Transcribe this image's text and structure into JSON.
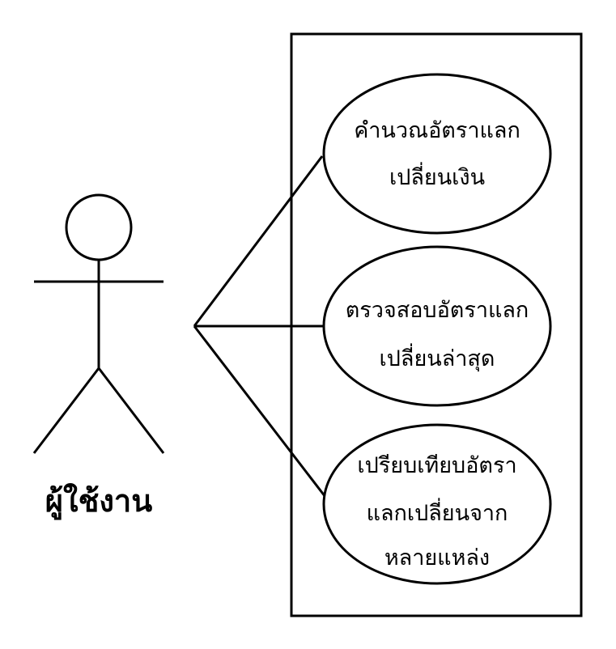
{
  "actor": {
    "label": "ผู้ใช้งาน"
  },
  "use_cases": [
    {
      "line1": "คำนวณอัตราแลก",
      "line2": "เปลี่ยนเงิน"
    },
    {
      "line1": "ตรวจสอบอัตราแลก",
      "line2": "เปลี่ยนล่าสุด"
    },
    {
      "line1": "เปรียบเทียบอัตรา",
      "line2": "แลกเปลี่ยนจาก",
      "line3": "หลายแหล่ง"
    }
  ],
  "colors": {
    "stroke": "#000000",
    "background": "#ffffff"
  }
}
